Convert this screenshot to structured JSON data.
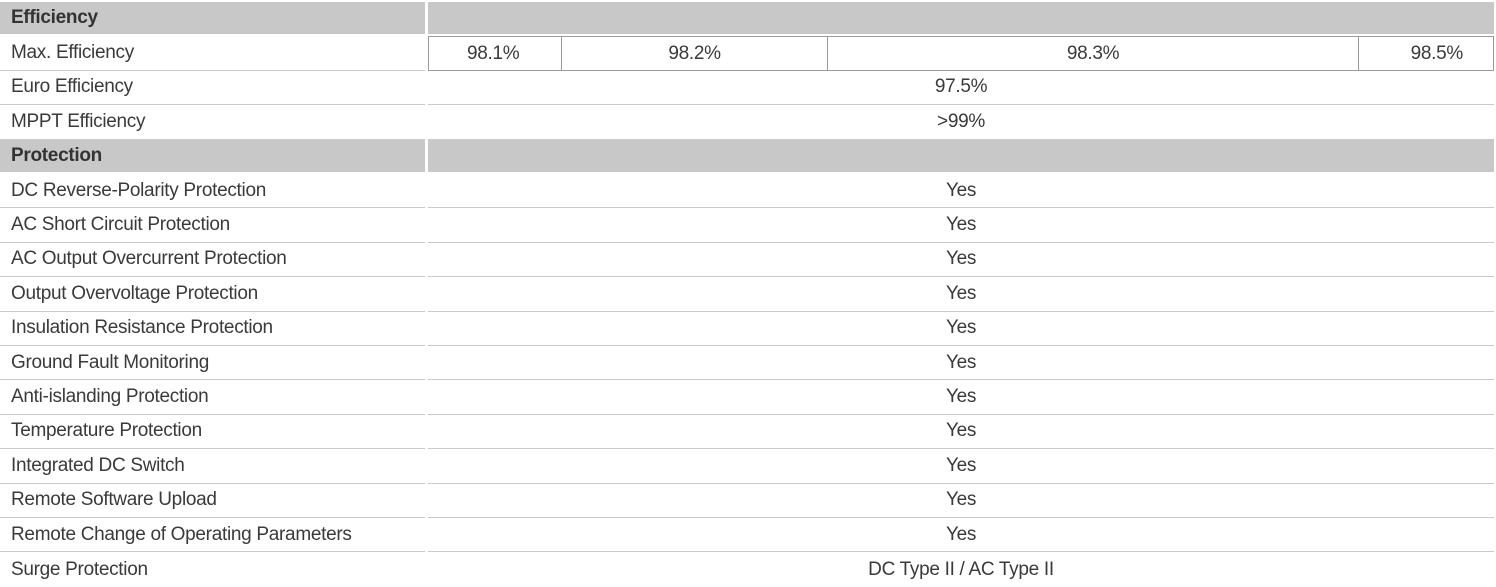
{
  "sections": [
    {
      "title": "Efficiency",
      "rows": [
        {
          "label": "Max. Efficiency",
          "values": [
            "98.1%",
            "98.2%",
            "98.3%",
            "98.5%"
          ]
        },
        {
          "label": "Euro Efficiency",
          "values": [
            "97.5%"
          ]
        },
        {
          "label": "MPPT Efficiency",
          "values": [
            ">99%"
          ]
        }
      ]
    },
    {
      "title": "Protection",
      "rows": [
        {
          "label": "DC Reverse-Polarity Protection",
          "values": [
            "Yes"
          ]
        },
        {
          "label": "AC Short Circuit Protection",
          "values": [
            "Yes"
          ]
        },
        {
          "label": "AC Output Overcurrent Protection",
          "values": [
            "Yes"
          ]
        },
        {
          "label": "Output Overvoltage Protection",
          "values": [
            "Yes"
          ]
        },
        {
          "label": "Insulation Resistance Protection",
          "values": [
            "Yes"
          ]
        },
        {
          "label": "Ground Fault Monitoring",
          "values": [
            "Yes"
          ]
        },
        {
          "label": "Anti-islanding Protection",
          "values": [
            "Yes"
          ]
        },
        {
          "label": "Temperature Protection",
          "values": [
            "Yes"
          ]
        },
        {
          "label": "Integrated DC Switch",
          "values": [
            "Yes"
          ]
        },
        {
          "label": "Remote Software Upload",
          "values": [
            "Yes"
          ]
        },
        {
          "label": "Remote Change of Operating Parameters",
          "values": [
            "Yes"
          ]
        },
        {
          "label": "Surge Protection",
          "values": [
            "DC Type II / AC Type II"
          ]
        }
      ]
    }
  ]
}
